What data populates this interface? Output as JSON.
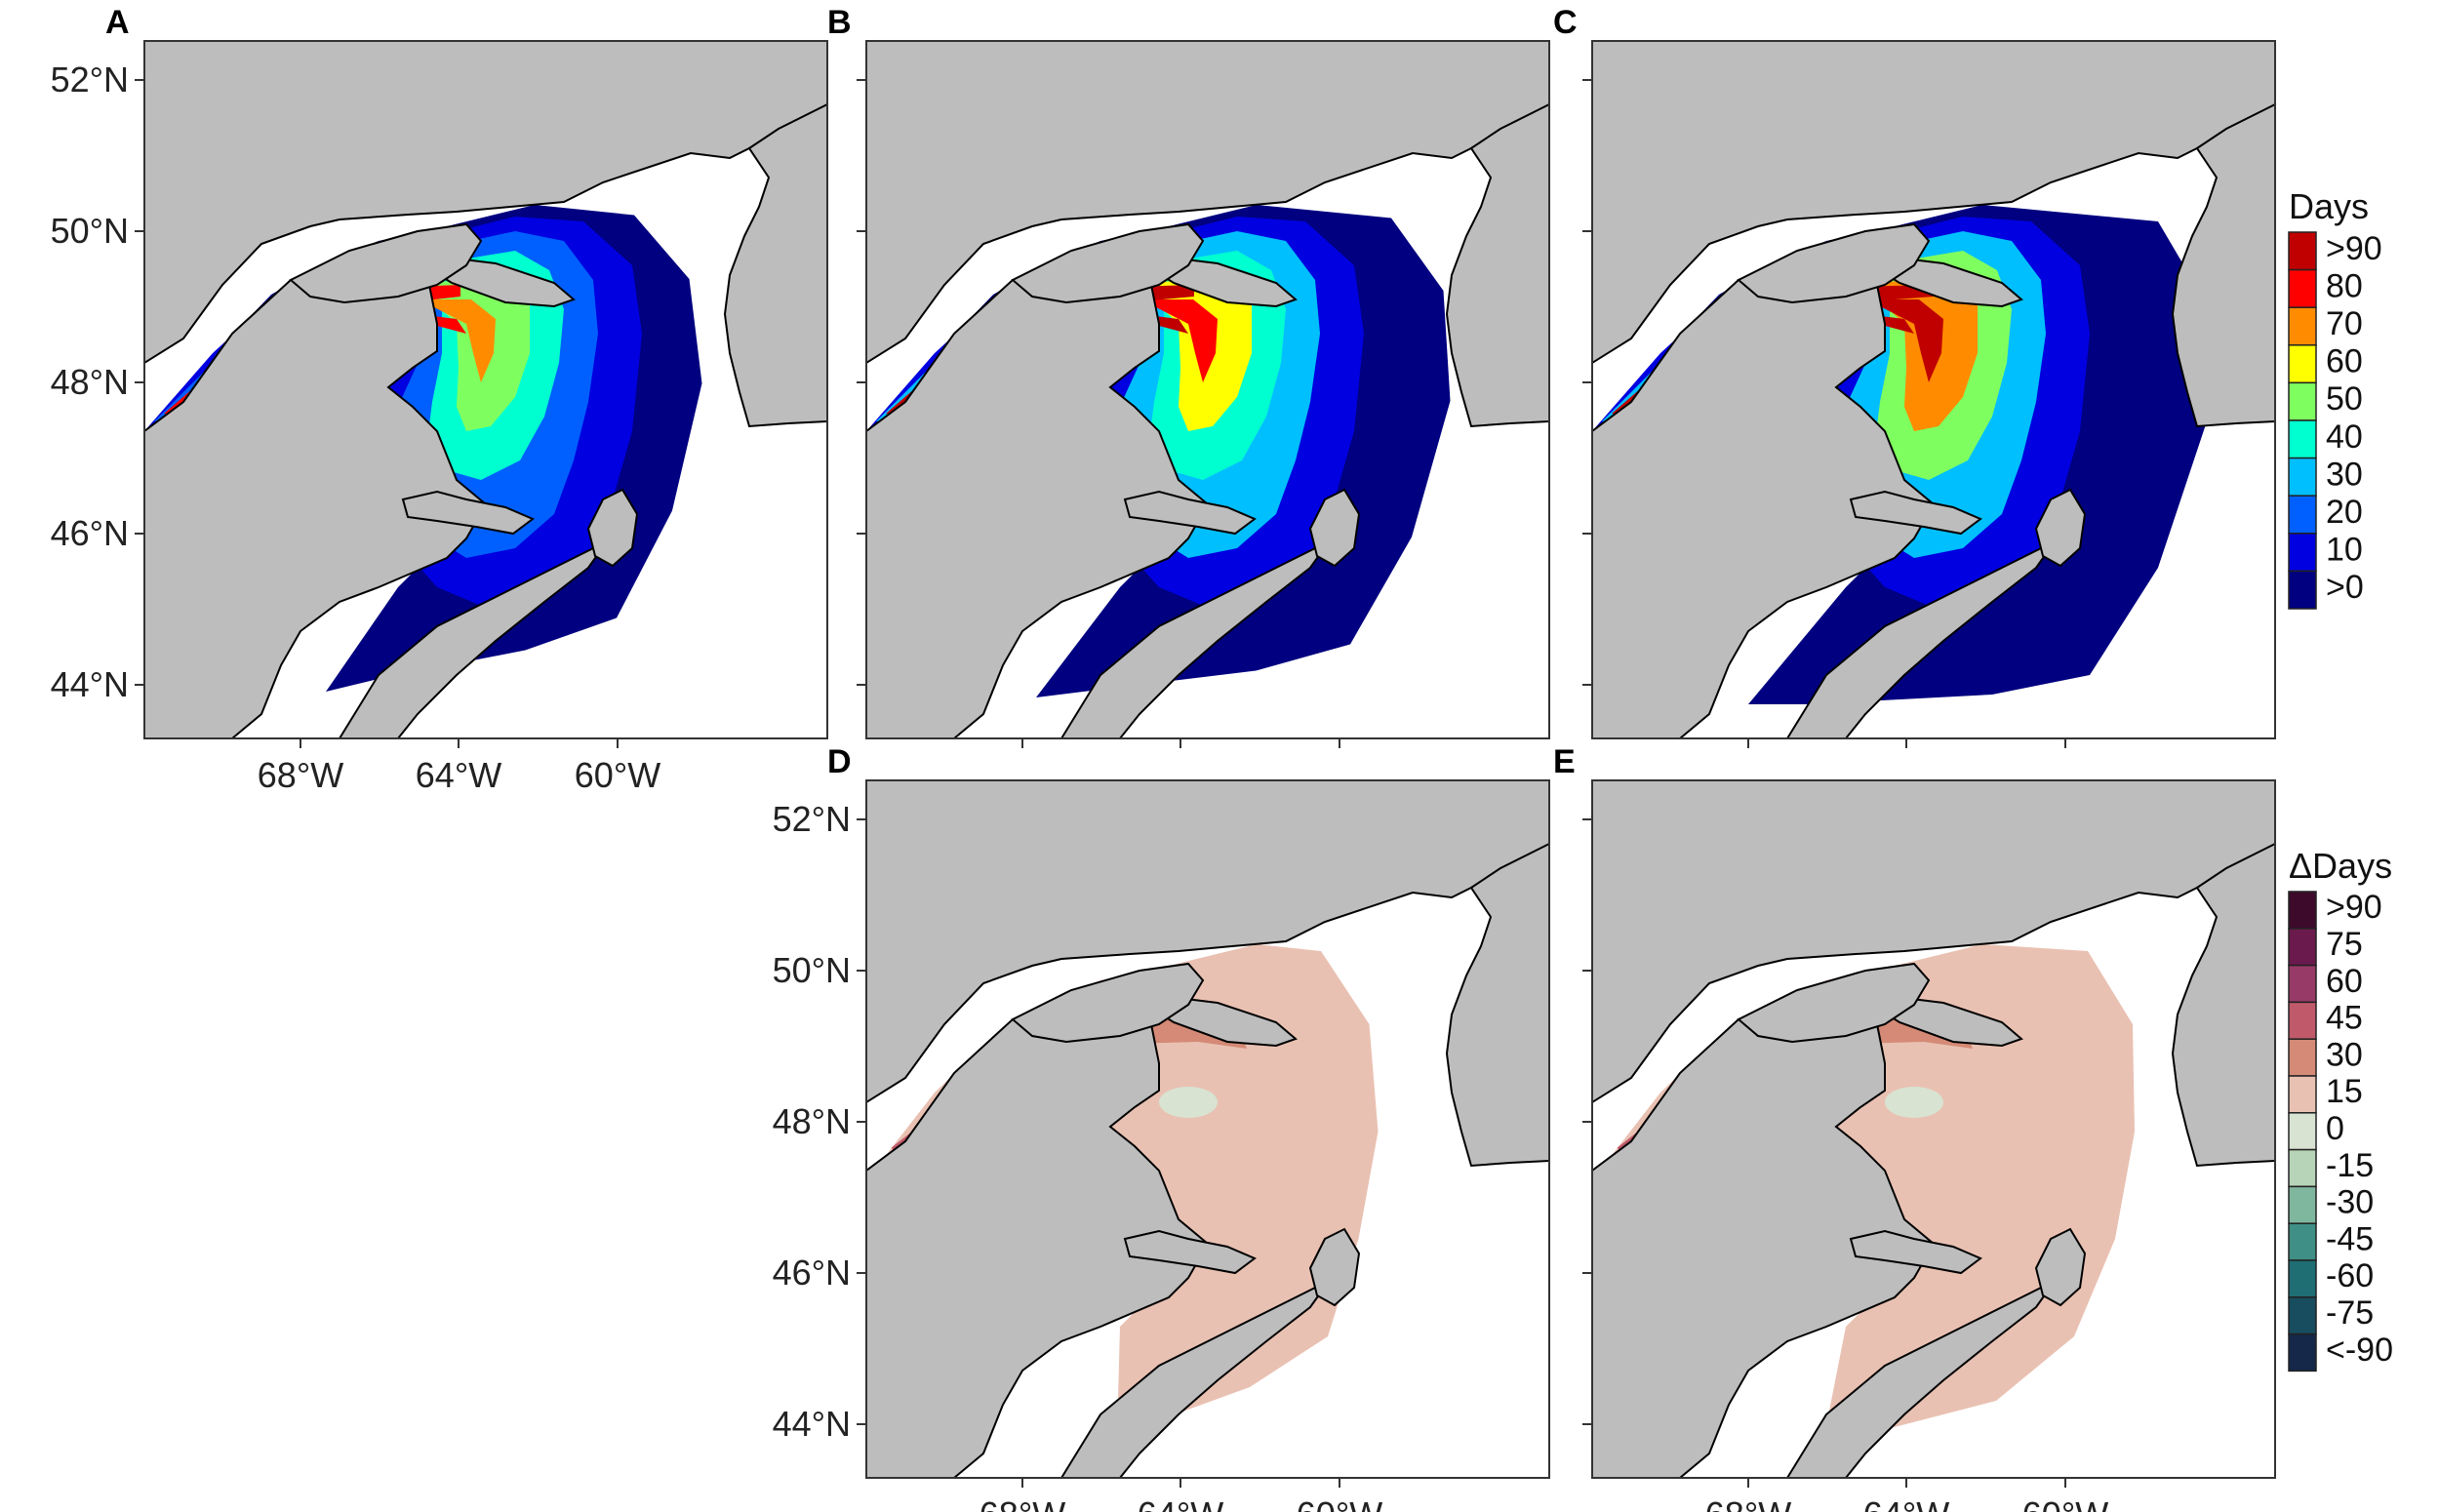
{
  "figure": {
    "panels": [
      {
        "id": "A",
        "letter": "A",
        "kind": "duration",
        "extent": 0.35
      },
      {
        "id": "B",
        "letter": "B",
        "kind": "duration",
        "extent": 0.65
      },
      {
        "id": "C",
        "letter": "C",
        "kind": "duration",
        "extent": 1.0
      },
      {
        "id": "D",
        "letter": "D",
        "kind": "difference",
        "extent": 0.65
      },
      {
        "id": "E",
        "letter": "E",
        "kind": "difference",
        "extent": 1.0
      }
    ],
    "lat_labels": [
      "52°N",
      "50°N",
      "48°N",
      "46°N",
      "44°N"
    ],
    "lon_labels": [
      "68°W",
      "64°W",
      "60°W"
    ],
    "legend_days": {
      "title": "Days",
      "labels": [
        ">90",
        "80",
        "70",
        "60",
        "50",
        "40",
        "30",
        "20",
        "10",
        ">0"
      ],
      "colors": [
        "#c00000",
        "#ff0000",
        "#ff8c00",
        "#ffff00",
        "#7fff5f",
        "#00ffd0",
        "#00bfff",
        "#0060ff",
        "#0000e0",
        "#000080"
      ]
    },
    "legend_delta": {
      "title": "ΔDays",
      "labels": [
        ">90",
        "75",
        "60",
        "45",
        "30",
        "15",
        "0",
        "-15",
        "-30",
        "-45",
        "-60",
        "-75",
        "<-90"
      ],
      "colors": [
        "#3d0a2c",
        "#6a1a4c",
        "#983a68",
        "#c05a6a",
        "#d48a76",
        "#e9c1b2",
        "#d8e3d2",
        "#b8d4b8",
        "#7fb79e",
        "#3f8f86",
        "#1e6e74",
        "#174d5e",
        "#15284a"
      ]
    },
    "colors": {
      "land": "#bdbdbd",
      "coast": "#000000",
      "ocean": "#ffffff"
    }
  }
}
